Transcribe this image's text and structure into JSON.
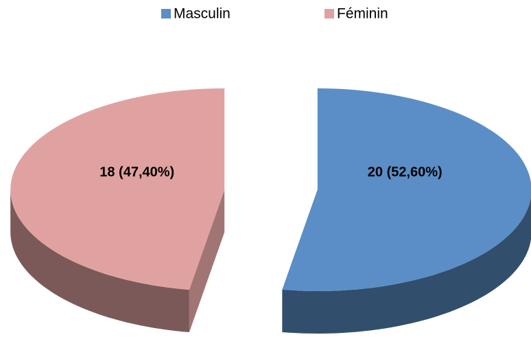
{
  "chart_data": {
    "type": "pie",
    "categories": [
      "Masculin",
      "Féminin"
    ],
    "values": [
      20,
      18
    ],
    "value_labels": [
      "20 (52,60%)",
      "18 (47,40%)"
    ],
    "colors": [
      "#5b8ec6",
      "#e0a2a1"
    ],
    "legend": "top",
    "exploded": true,
    "three_d": true
  }
}
